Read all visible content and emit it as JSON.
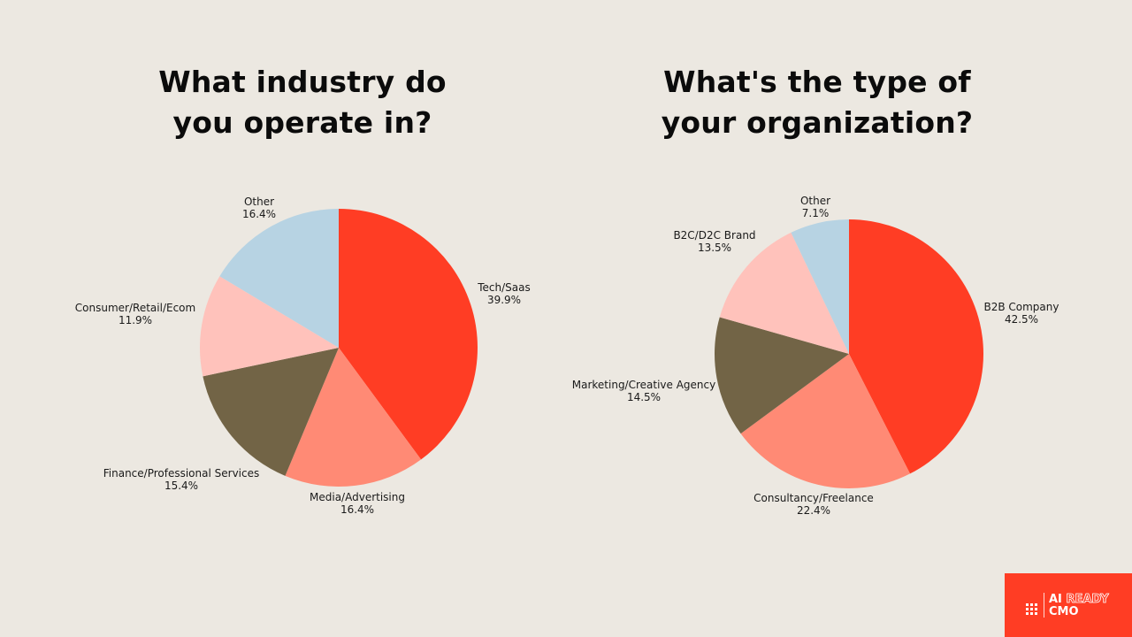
{
  "colors": {
    "background": "#ece8e1",
    "red": "#ff3d24",
    "salmon": "#ff8a75",
    "olive": "#726446",
    "pink": "#ffc2bb",
    "light_blue": "#b7d3e3",
    "brand": "#ff3d24"
  },
  "chart_data": [
    {
      "type": "pie",
      "title_lines": [
        "What industry do",
        "you operate in?"
      ],
      "slices": [
        {
          "label": "Tech/Saas",
          "value": 39.9,
          "pct_label": "39.9%",
          "color": "#ff3d24"
        },
        {
          "label": "Media/Advertising",
          "value": 16.4,
          "pct_label": "16.4%",
          "color": "#ff8a75"
        },
        {
          "label": "Finance/Professional Services",
          "value": 15.4,
          "pct_label": "15.4%",
          "color": "#726446"
        },
        {
          "label": "Consumer/Retail/Ecom",
          "value": 11.9,
          "pct_label": "11.9%",
          "color": "#ffc2bb"
        },
        {
          "label": "Other",
          "value": 16.4,
          "pct_label": "16.4%",
          "color": "#b7d3e3"
        }
      ],
      "start_angle": "12 o'clock",
      "direction": "clockwise"
    },
    {
      "type": "pie",
      "title_lines": [
        "What's the type of",
        "your organization?"
      ],
      "slices": [
        {
          "label": "B2B Company",
          "value": 42.5,
          "pct_label": "42.5%",
          "color": "#ff3d24"
        },
        {
          "label": "Consultancy/Freelance",
          "value": 22.4,
          "pct_label": "22.4%",
          "color": "#ff8a75"
        },
        {
          "label": "Marketing/Creative Agency",
          "value": 14.5,
          "pct_label": "14.5%",
          "color": "#726446"
        },
        {
          "label": "B2C/D2C Brand",
          "value": 13.5,
          "pct_label": "13.5%",
          "color": "#ffc2bb"
        },
        {
          "label": "Other",
          "value": 7.1,
          "pct_label": "7.1%",
          "color": "#b7d3e3"
        }
      ],
      "start_angle": "12 o'clock",
      "direction": "clockwise"
    }
  ],
  "logo": {
    "line1_ai": "AI",
    "line1_ready": "READY",
    "line2": "CMO"
  }
}
